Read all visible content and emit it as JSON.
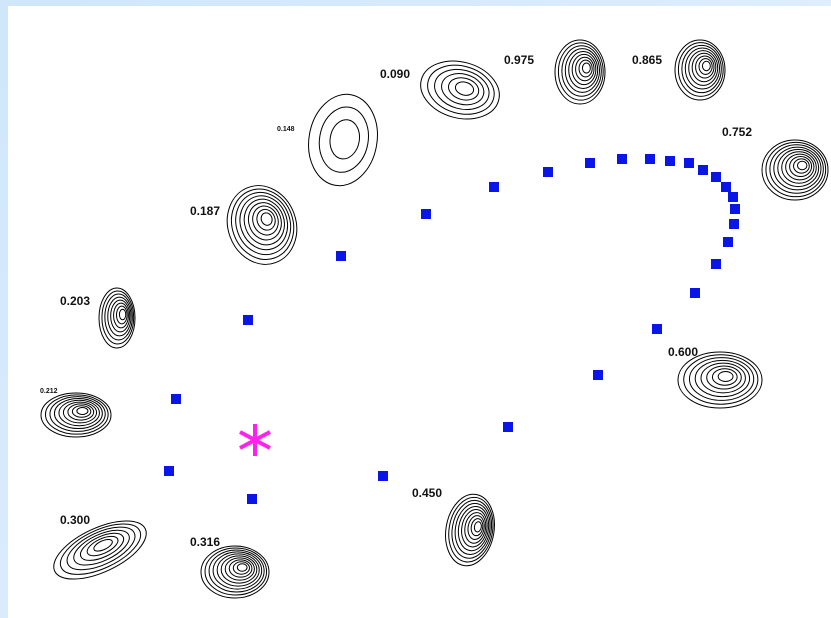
{
  "labels": [
    "0.865",
    "0.975",
    "0.090",
    "0.148",
    "0.752",
    "0.187",
    "0.203",
    "0.212",
    "0.600",
    "0.450",
    "0.300",
    "0.316"
  ]
}
